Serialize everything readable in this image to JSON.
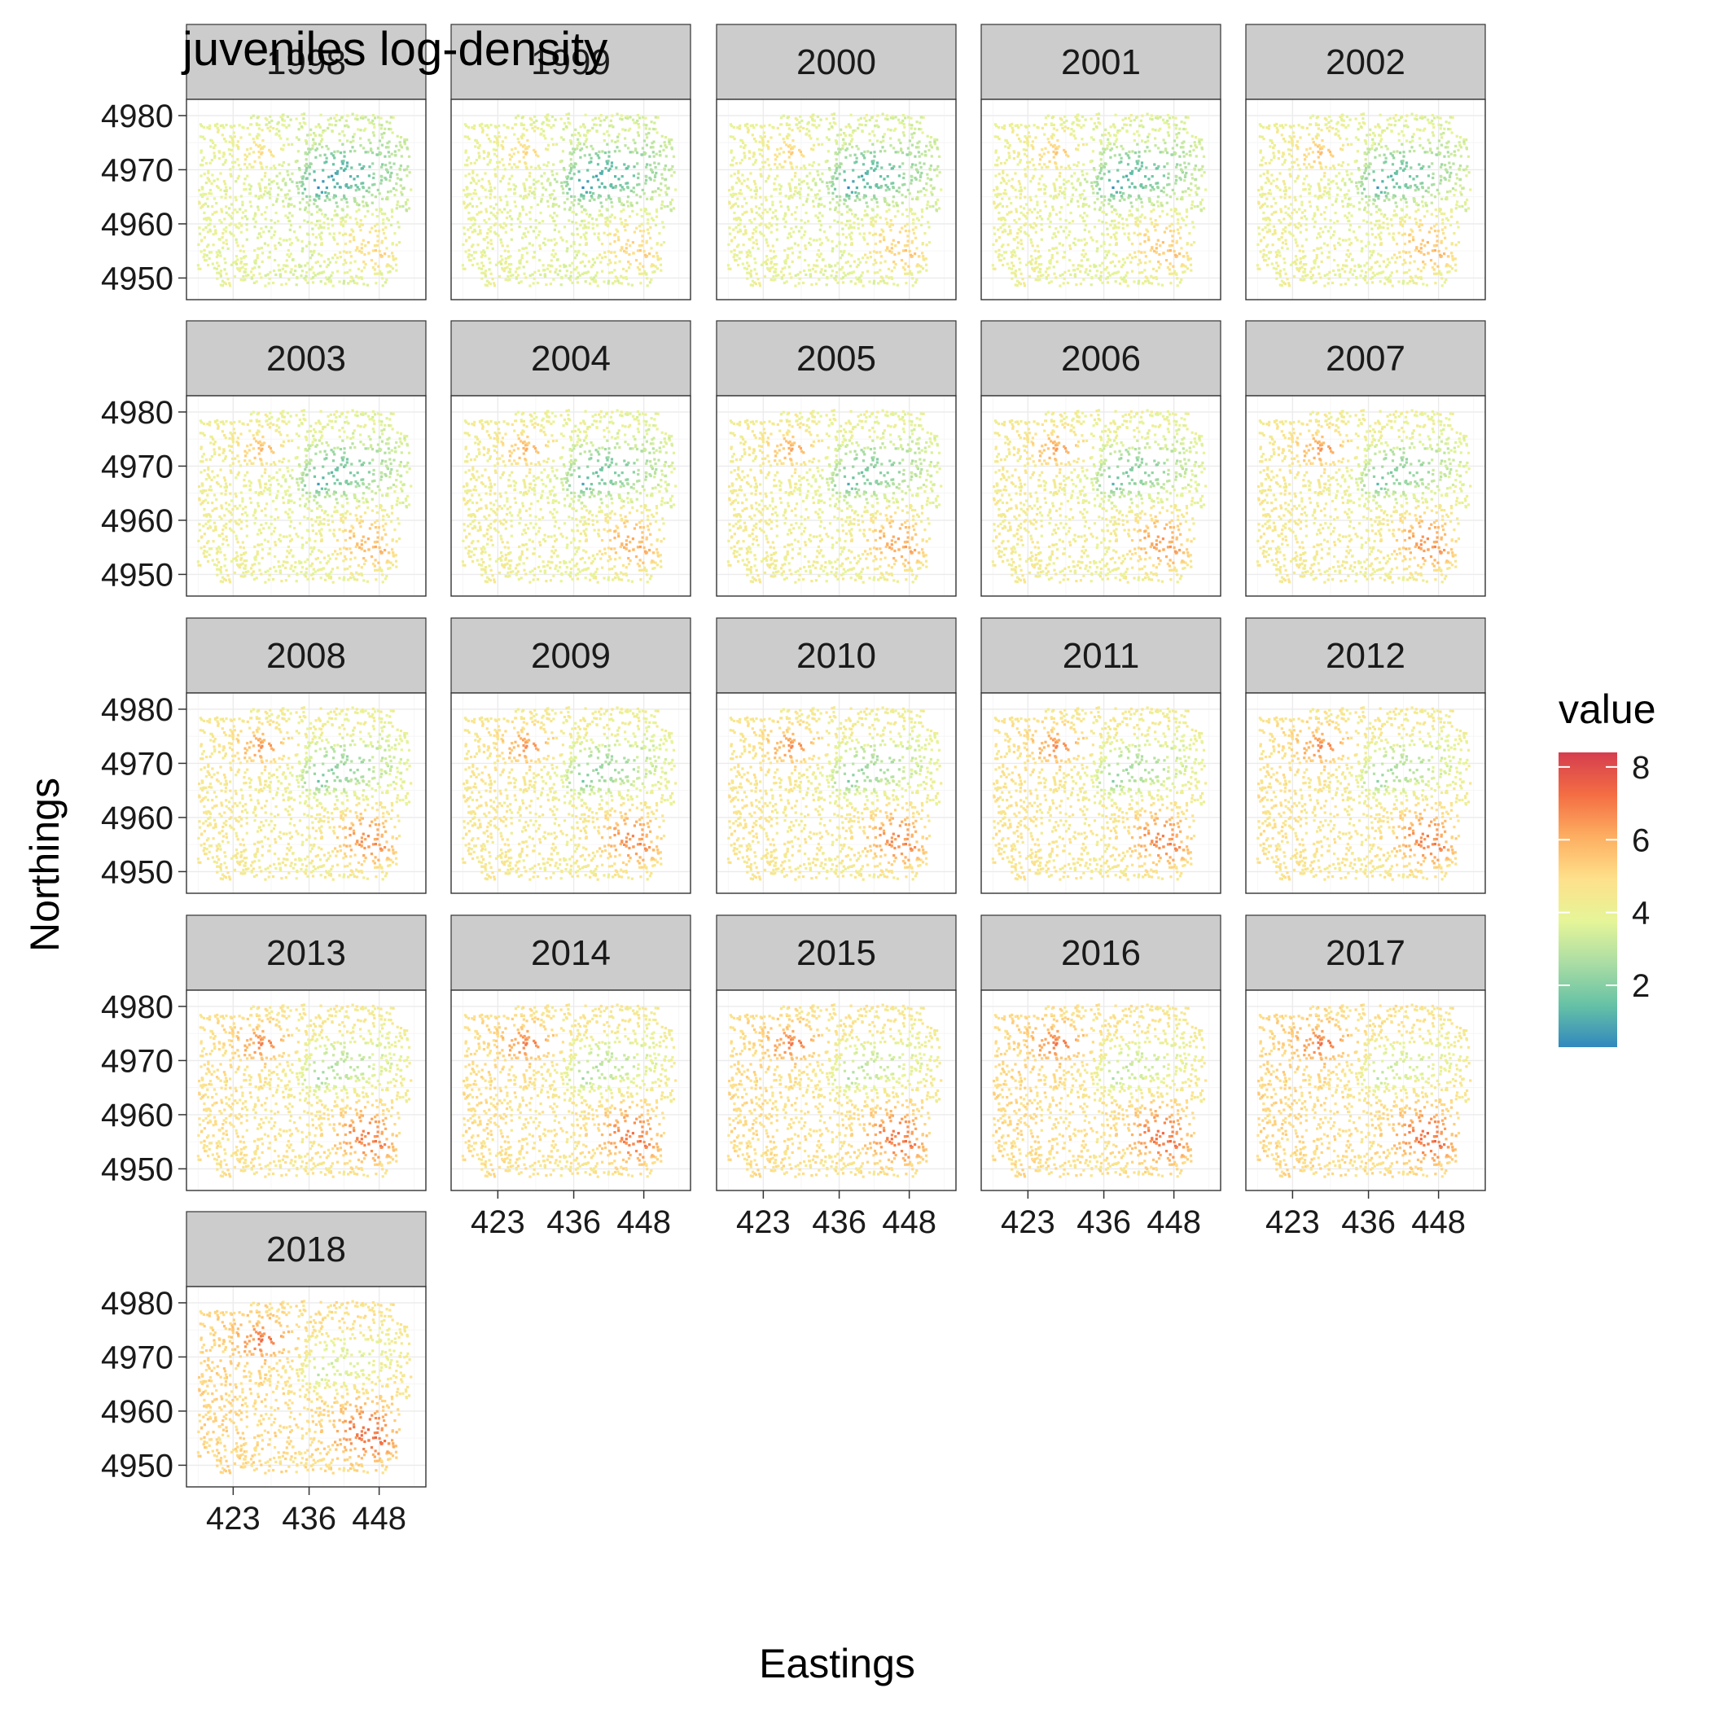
{
  "chart_data": {
    "type": "scatter",
    "title": "juveniles log-density",
    "xlabel": "Eastings",
    "ylabel": "Northings",
    "xlim": [
      415,
      456
    ],
    "ylim": [
      4946,
      4983
    ],
    "x_ticks": [
      423,
      436,
      448
    ],
    "y_ticks": [
      4950,
      4960,
      4970,
      4980
    ],
    "panels": [
      "1998",
      "1999",
      "2000",
      "2001",
      "2002",
      "2003",
      "2004",
      "2005",
      "2006",
      "2007",
      "2008",
      "2009",
      "2010",
      "2011",
      "2012",
      "2013",
      "2014",
      "2015",
      "2016",
      "2017",
      "2018"
    ],
    "layout": {
      "columns": 5,
      "rows": 5
    },
    "legend": {
      "title": "value",
      "ticks": [
        2,
        4,
        6,
        8
      ],
      "range": [
        0.3,
        8.4
      ],
      "position": "right",
      "colors": [
        "#3288bd",
        "#66c2a5",
        "#abdda4",
        "#e6f598",
        "#fee08b",
        "#fdae61",
        "#f46d43",
        "#d53e4f"
      ]
    },
    "grid": true,
    "strip_color": "#cccccc",
    "description_hotspots": [
      {
        "label": "north-west",
        "x": 428,
        "y": 4972
      },
      {
        "label": "south-east",
        "x": 446,
        "y": 4957
      },
      {
        "label": "east-low",
        "x": 439,
        "y": 4967
      }
    ]
  }
}
